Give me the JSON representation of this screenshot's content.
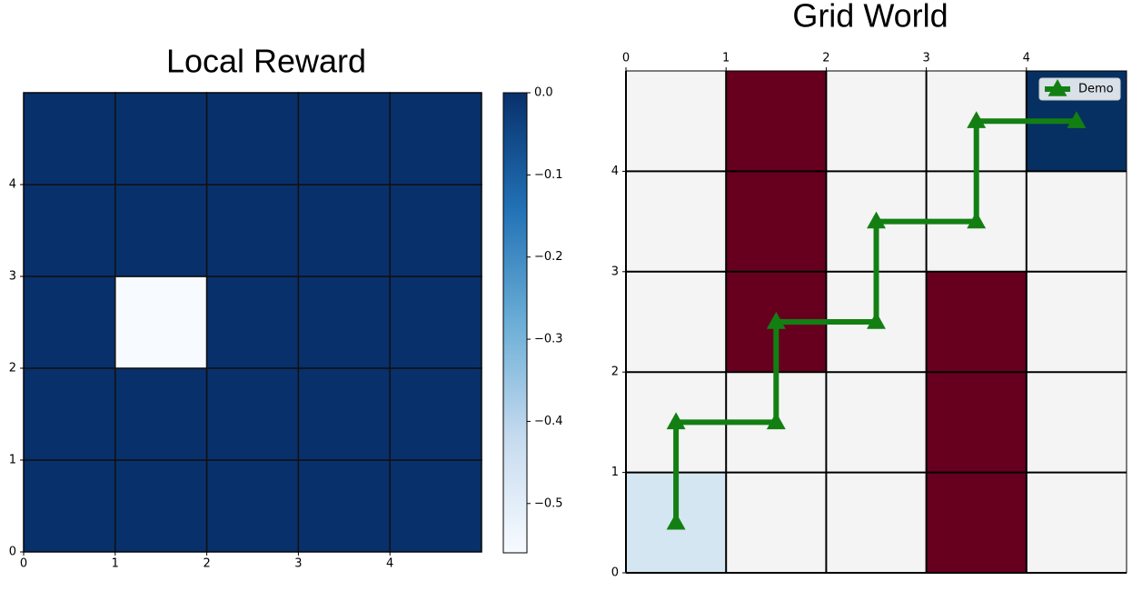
{
  "chart_data": [
    {
      "type": "heatmap",
      "title": "Local Reward",
      "values": [
        [
          0,
          0,
          0,
          0,
          0
        ],
        [
          0,
          0,
          0,
          0,
          0
        ],
        [
          0,
          -0.56,
          0,
          0,
          0
        ],
        [
          0,
          0,
          0,
          0,
          0
        ],
        [
          0,
          0,
          0,
          0,
          0
        ]
      ],
      "xlim": [
        0,
        5
      ],
      "xticks": [
        0,
        1,
        2,
        3,
        4
      ],
      "ylim": [
        0,
        5
      ],
      "yticks": [
        0,
        1,
        2,
        3,
        4
      ],
      "colormap": "Blues",
      "clim": [
        -0.56,
        0
      ],
      "cticks": [
        {
          "value": 0,
          "label": "0.0"
        },
        {
          "value": -0.1,
          "label": "−0.1"
        },
        {
          "value": -0.2,
          "label": "−0.2"
        },
        {
          "value": -0.3,
          "label": "−0.3"
        },
        {
          "value": -0.4,
          "label": "−0.4"
        },
        {
          "value": -0.5,
          "label": "−0.5"
        }
      ]
    },
    {
      "type": "grid",
      "title": "Grid World",
      "xlim": [
        0,
        5
      ],
      "xticks": [
        0,
        1,
        2,
        3,
        4
      ],
      "ylim": [
        0,
        5
      ],
      "yticks": [
        0,
        1,
        2,
        3,
        4
      ],
      "cell_colors": [
        [
          "#d4e6f1",
          "#f4f4f4",
          "#f4f4f4",
          "#67001f",
          "#f4f4f4"
        ],
        [
          "#f4f4f4",
          "#f4f4f4",
          "#f4f4f4",
          "#67001f",
          "#f4f4f4"
        ],
        [
          "#f4f4f4",
          "#67001f",
          "#f4f4f4",
          "#67001f",
          "#f4f4f4"
        ],
        [
          "#f4f4f4",
          "#67001f",
          "#f4f4f4",
          "#f4f4f4",
          "#f4f4f4"
        ],
        [
          "#f4f4f4",
          "#67001f",
          "#f4f4f4",
          "#f4f4f4",
          "#053061"
        ]
      ],
      "series": [
        {
          "name": "Demo",
          "color": "#137f13",
          "x": [
            0.5,
            0.5,
            1.5,
            1.5,
            2.5,
            2.5,
            3.5,
            3.5,
            4.5
          ],
          "values": [
            0.5,
            1.5,
            1.5,
            2.5,
            2.5,
            3.5,
            3.5,
            4.5,
            4.5
          ]
        }
      ],
      "legend": "upper right"
    }
  ]
}
